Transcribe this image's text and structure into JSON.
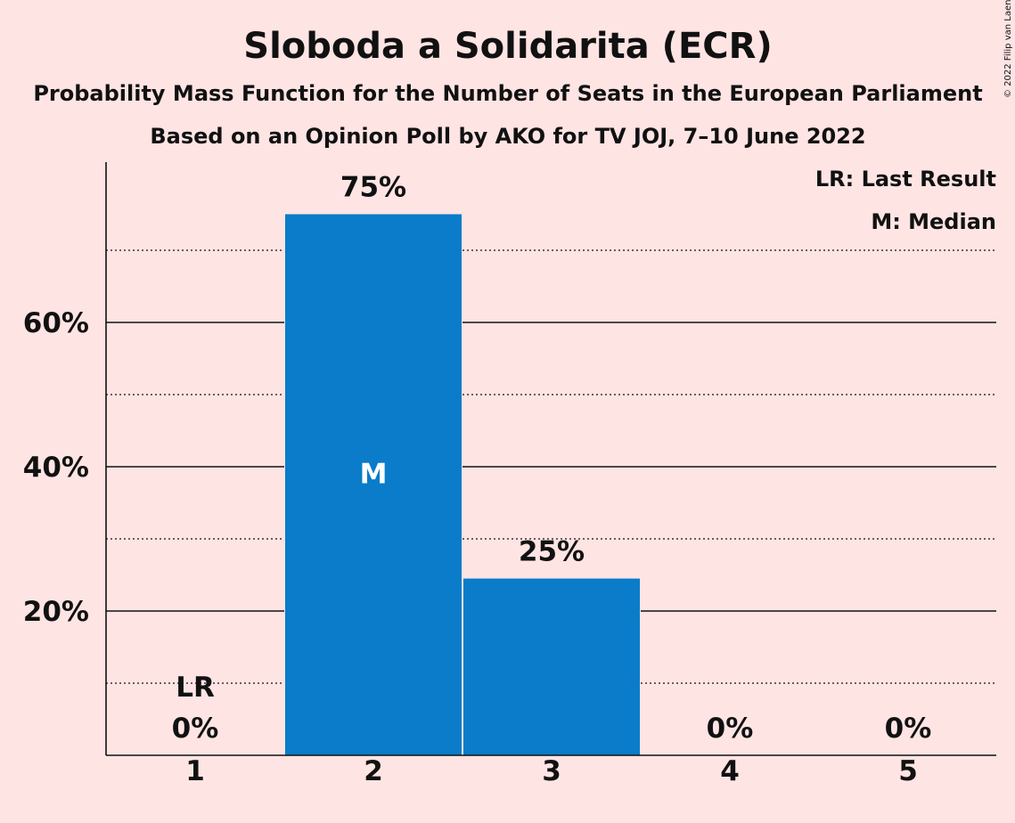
{
  "header": {
    "title": "Sloboda a Solidarita (ECR)",
    "subtitle_1": "Probability Mass Function for the Number of Seats in the European Parliament",
    "subtitle_2": "Based on an Opinion Poll by AKO for TV JOJ, 7–10 June 2022"
  },
  "copyright": "© 2022 Filip van Laenen",
  "legend": {
    "last_result": "LR: Last Result",
    "median": "M: Median"
  },
  "colors": {
    "background": "#FFE4E4",
    "bar": "#0A7CC9",
    "text": "#111111"
  },
  "chart_data": {
    "type": "bar",
    "title": "Sloboda a Solidarita (ECR)",
    "categories": [
      "1",
      "2",
      "3",
      "4",
      "5"
    ],
    "values": [
      0,
      75,
      24.5,
      0,
      0
    ],
    "value_labels": [
      "0%",
      "75%",
      "25%",
      "0%",
      "0%"
    ],
    "ylim": [
      0,
      82
    ],
    "yticks_labeled": [
      {
        "value": 20,
        "label": "20%"
      },
      {
        "value": 40,
        "label": "40%"
      },
      {
        "value": 60,
        "label": "60%"
      }
    ],
    "dotted_gridlines": [
      10,
      30,
      50,
      70
    ],
    "last_result": {
      "category": "1",
      "label": "LR"
    },
    "median": {
      "category": "2",
      "label": "M"
    },
    "legend_position": "top-right"
  }
}
